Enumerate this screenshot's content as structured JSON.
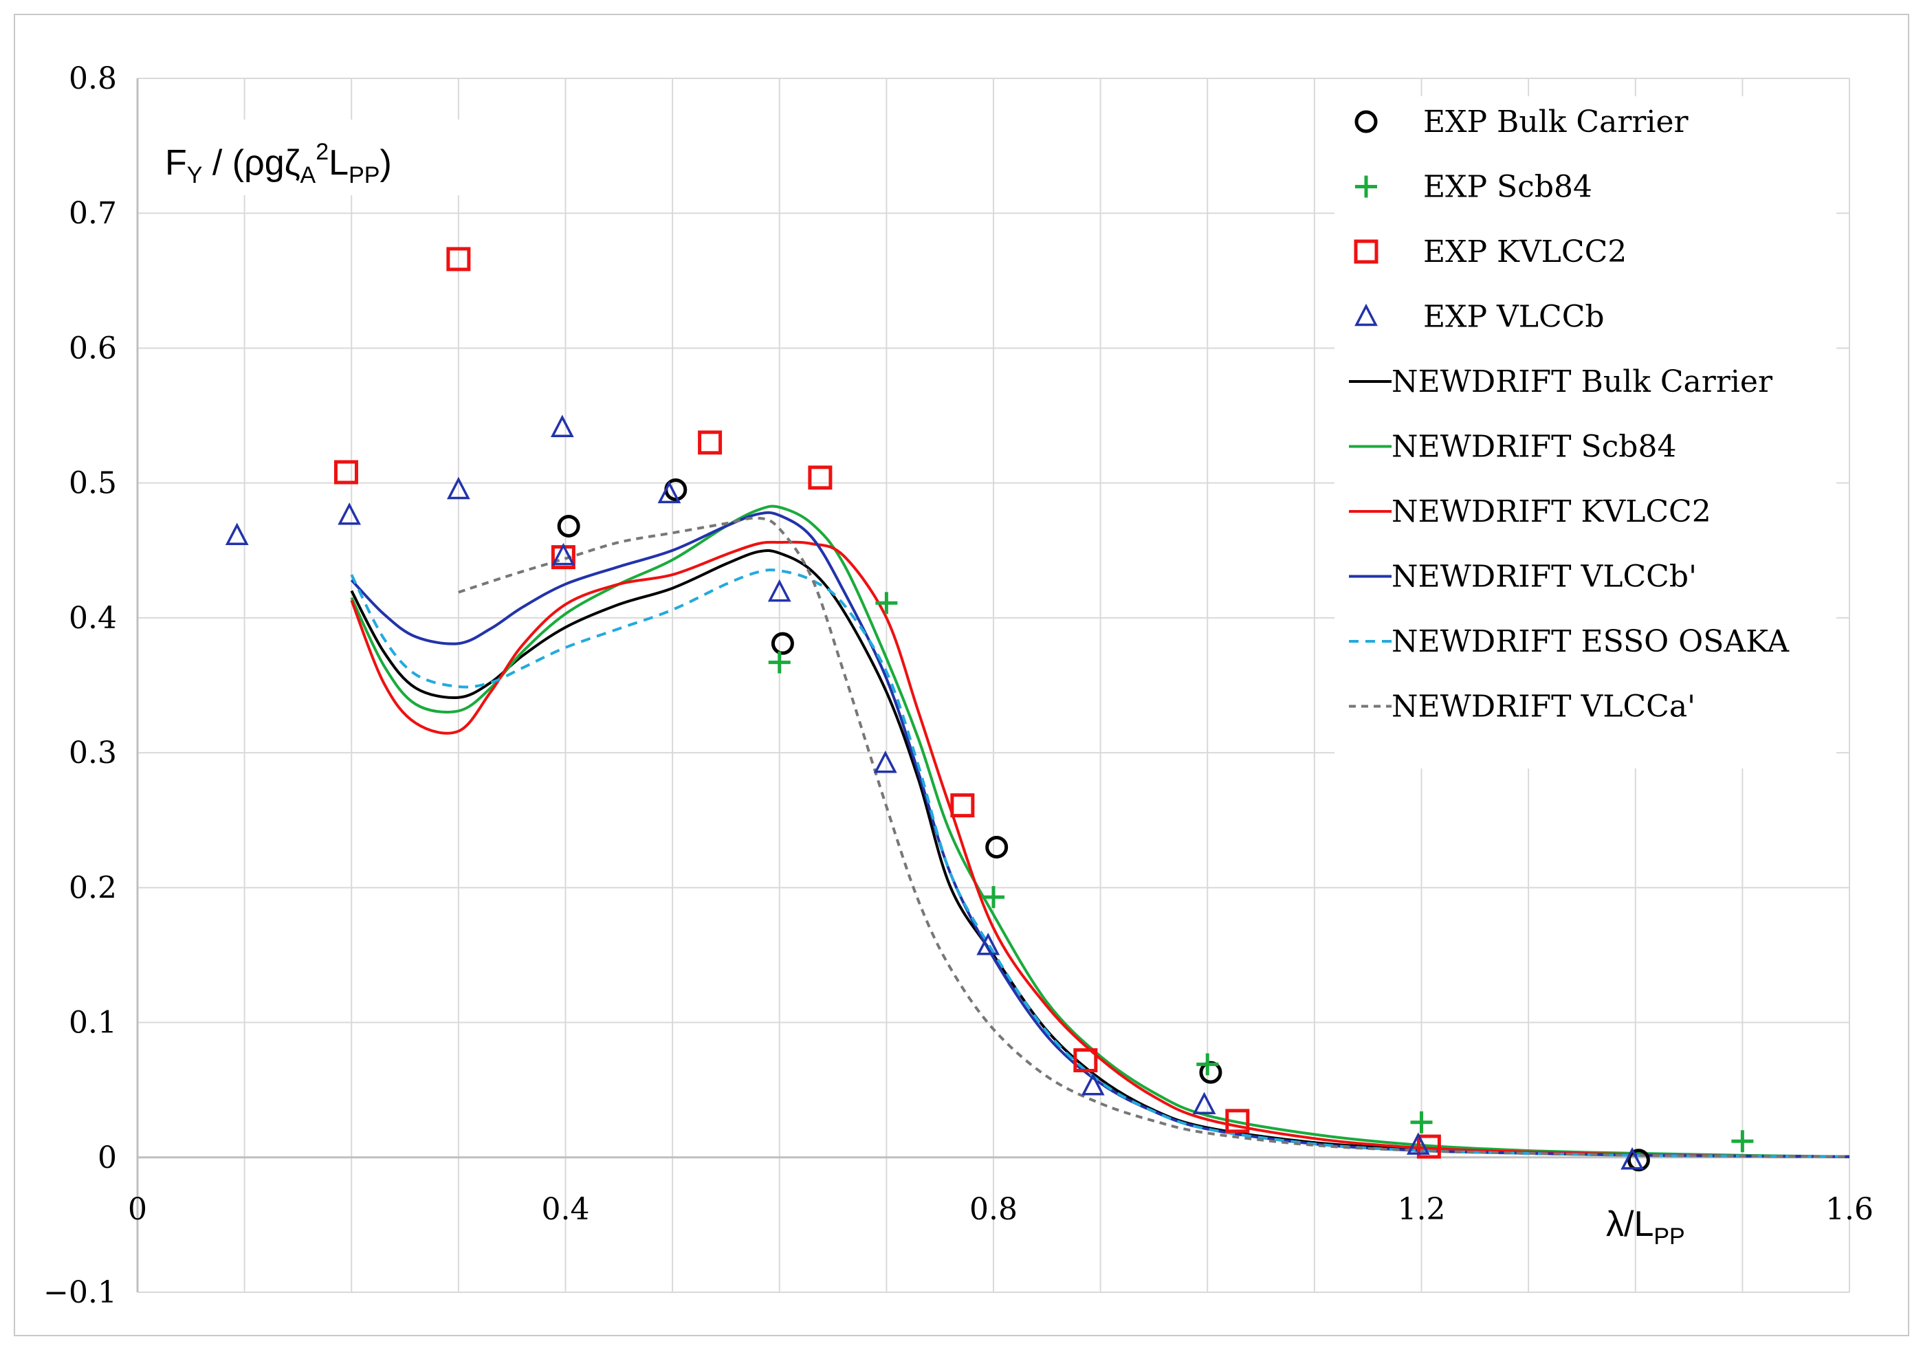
{
  "chart_data": {
    "type": "scatter",
    "title": "",
    "ylabel": {
      "main": "F",
      "sub_y": "Y",
      "mid": " / (ρgζ",
      "sub_a": "A",
      "sup": "2",
      "l": "L",
      "sub_pp": "PP",
      "close": ")"
    },
    "xlabel": {
      "main": "λ/L",
      "sub_pp": "PP"
    },
    "xlim": [
      0,
      1.6
    ],
    "ylim": [
      -0.1,
      0.8
    ],
    "x_ticks": [
      0,
      0.4,
      0.8,
      1.2,
      1.6
    ],
    "x_tick_labels": [
      "0",
      "0.4",
      "0.8",
      "1.2",
      "1.6"
    ],
    "x_minor_grid": [
      0.1,
      0.2,
      0.3,
      0.5,
      0.6,
      0.7,
      0.9,
      1.0,
      1.1,
      1.3,
      1.4,
      1.5
    ],
    "y_ticks": [
      -0.1,
      0,
      0.1,
      0.2,
      0.3,
      0.4,
      0.5,
      0.6,
      0.7,
      0.8
    ],
    "y_tick_labels": [
      "−0.1",
      "0",
      "0.1",
      "0.2",
      "0.3",
      "0.4",
      "0.5",
      "0.6",
      "0.7",
      "0.8"
    ],
    "grid": true,
    "legend_position": "top-right",
    "series": [
      {
        "name": "EXP Bulk Carrier",
        "kind": "marker",
        "marker": "circle",
        "color": "#000000",
        "x": [
          0.403,
          0.503,
          0.603,
          0.803,
          1.003,
          1.403
        ],
        "y": [
          0.468,
          0.495,
          0.381,
          0.23,
          0.063,
          -0.002
        ]
      },
      {
        "name": "EXP Scb84",
        "kind": "marker",
        "marker": "plus",
        "color": "#1aab3c",
        "x": [
          0.6,
          0.7,
          0.8,
          1.0,
          1.2,
          1.5
        ],
        "y": [
          0.367,
          0.411,
          0.193,
          0.069,
          0.026,
          0.012
        ]
      },
      {
        "name": "EXP KVLCC2",
        "kind": "marker",
        "marker": "square",
        "color": "#ee1111",
        "x": [
          0.195,
          0.3,
          0.398,
          0.535,
          0.638,
          0.771,
          0.886,
          1.028,
          1.207
        ],
        "y": [
          0.508,
          0.666,
          0.445,
          0.53,
          0.504,
          0.261,
          0.072,
          0.027,
          0.008
        ]
      },
      {
        "name": "EXP VLCCb",
        "kind": "marker",
        "marker": "triangle",
        "color": "#2233aa",
        "x": [
          0.093,
          0.198,
          0.3,
          0.397,
          0.398,
          0.497,
          0.6,
          0.699,
          0.795,
          0.893,
          0.997,
          1.197,
          1.397
        ],
        "y": [
          0.461,
          0.476,
          0.495,
          0.541,
          0.446,
          0.492,
          0.419,
          0.292,
          0.157,
          0.053,
          0.039,
          0.009,
          -0.002
        ]
      },
      {
        "name": "NEWDRIFT Bulk Carrier",
        "kind": "line",
        "color": "#000000",
        "dash": "",
        "x": [
          0.2,
          0.23,
          0.26,
          0.3,
          0.33,
          0.36,
          0.4,
          0.45,
          0.5,
          0.55,
          0.58,
          0.6,
          0.63,
          0.66,
          0.7,
          0.73,
          0.76,
          0.8,
          0.85,
          0.9,
          0.95,
          1.0,
          1.1,
          1.2,
          1.3,
          1.4,
          1.5,
          1.6
        ],
        "y": [
          0.42,
          0.375,
          0.348,
          0.341,
          0.352,
          0.372,
          0.393,
          0.41,
          0.422,
          0.44,
          0.449,
          0.448,
          0.435,
          0.405,
          0.345,
          0.28,
          0.2,
          0.15,
          0.094,
          0.058,
          0.035,
          0.022,
          0.011,
          0.006,
          0.003,
          0.002,
          0.001,
          0.0005
        ]
      },
      {
        "name": "NEWDRIFT Scb84",
        "kind": "line",
        "color": "#1aab3c",
        "dash": "",
        "x": [
          0.2,
          0.23,
          0.26,
          0.3,
          0.33,
          0.36,
          0.4,
          0.45,
          0.5,
          0.55,
          0.58,
          0.6,
          0.63,
          0.66,
          0.7,
          0.73,
          0.76,
          0.8,
          0.85,
          0.9,
          0.95,
          1.0,
          1.1,
          1.2,
          1.3,
          1.4,
          1.5,
          1.6
        ],
        "y": [
          0.415,
          0.365,
          0.336,
          0.331,
          0.348,
          0.375,
          0.403,
          0.425,
          0.443,
          0.468,
          0.48,
          0.482,
          0.47,
          0.44,
          0.37,
          0.31,
          0.24,
          0.18,
          0.115,
          0.075,
          0.048,
          0.031,
          0.017,
          0.009,
          0.005,
          0.003,
          0.0015,
          0.0005
        ]
      },
      {
        "name": "NEWDRIFT KVLCC2",
        "kind": "line",
        "color": "#ee1111",
        "dash": "",
        "x": [
          0.2,
          0.23,
          0.26,
          0.3,
          0.33,
          0.36,
          0.4,
          0.45,
          0.5,
          0.55,
          0.58,
          0.6,
          0.63,
          0.66,
          0.7,
          0.73,
          0.76,
          0.8,
          0.85,
          0.9,
          0.95,
          1.0,
          1.1,
          1.2,
          1.3,
          1.4,
          1.5,
          1.6
        ],
        "y": [
          0.413,
          0.352,
          0.322,
          0.316,
          0.345,
          0.38,
          0.41,
          0.425,
          0.432,
          0.447,
          0.455,
          0.456,
          0.455,
          0.446,
          0.4,
          0.33,
          0.258,
          0.17,
          0.112,
          0.073,
          0.045,
          0.028,
          0.014,
          0.007,
          0.004,
          0.002,
          0.001,
          0.0005
        ]
      },
      {
        "name": "NEWDRIFT VLCCb'",
        "kind": "line",
        "color": "#2233aa",
        "dash": "",
        "x": [
          0.2,
          0.23,
          0.26,
          0.3,
          0.33,
          0.36,
          0.4,
          0.45,
          0.5,
          0.55,
          0.58,
          0.6,
          0.63,
          0.66,
          0.7,
          0.73,
          0.76,
          0.8,
          0.85,
          0.9,
          0.95,
          1.0,
          1.1,
          1.2,
          1.3,
          1.4,
          1.5,
          1.6
        ],
        "y": [
          0.428,
          0.403,
          0.386,
          0.381,
          0.392,
          0.408,
          0.425,
          0.438,
          0.45,
          0.468,
          0.477,
          0.476,
          0.46,
          0.42,
          0.355,
          0.285,
          0.21,
          0.148,
          0.09,
          0.055,
          0.034,
          0.021,
          0.01,
          0.005,
          0.003,
          0.0015,
          0.001,
          0.0005
        ]
      },
      {
        "name": "NEWDRIFT ESSO OSAKA",
        "kind": "line",
        "color": "#22aadd",
        "dash": "14,10",
        "x": [
          0.2,
          0.23,
          0.26,
          0.3,
          0.33,
          0.36,
          0.4,
          0.45,
          0.5,
          0.55,
          0.58,
          0.6,
          0.63,
          0.66,
          0.7,
          0.73,
          0.76,
          0.8,
          0.85,
          0.9,
          0.95,
          1.0,
          1.1,
          1.2,
          1.3,
          1.4,
          1.5,
          1.6
        ],
        "y": [
          0.432,
          0.385,
          0.358,
          0.349,
          0.352,
          0.363,
          0.378,
          0.392,
          0.406,
          0.425,
          0.434,
          0.435,
          0.428,
          0.41,
          0.36,
          0.29,
          0.21,
          0.152,
          0.093,
          0.056,
          0.034,
          0.021,
          0.01,
          0.005,
          0.003,
          0.0015,
          0.001,
          0.0005
        ]
      },
      {
        "name": "NEWDRIFT VLCCa'",
        "kind": "line",
        "color": "#777777",
        "dash": "10,8",
        "x": [
          0.3,
          0.35,
          0.4,
          0.45,
          0.5,
          0.55,
          0.58,
          0.6,
          0.63,
          0.66,
          0.7,
          0.73,
          0.76,
          0.8,
          0.85,
          0.9,
          0.95,
          1.0,
          1.1,
          1.2,
          1.3,
          1.4,
          1.5,
          1.6
        ],
        "y": [
          0.419,
          0.432,
          0.444,
          0.456,
          0.463,
          0.47,
          0.474,
          0.466,
          0.43,
          0.36,
          0.26,
          0.19,
          0.14,
          0.095,
          0.06,
          0.04,
          0.027,
          0.018,
          0.009,
          0.005,
          0.003,
          0.0015,
          0.001,
          0.0005
        ]
      }
    ]
  }
}
